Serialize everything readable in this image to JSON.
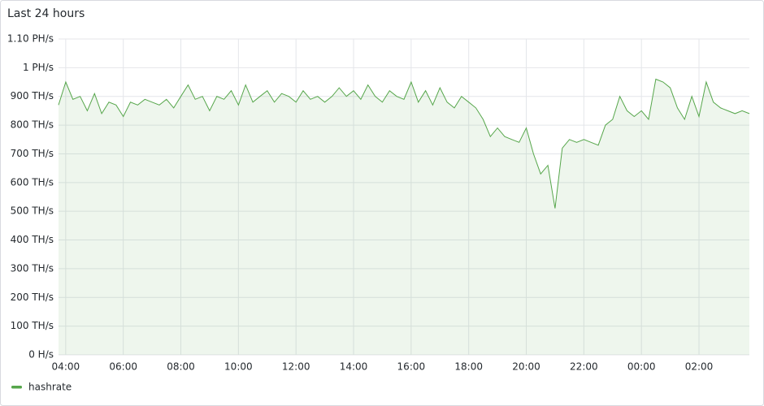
{
  "chart_data": {
    "type": "line",
    "title": "Last 24 hours",
    "x": [
      "03:45",
      "04:00",
      "04:15",
      "04:30",
      "04:45",
      "05:00",
      "05:15",
      "05:30",
      "05:45",
      "06:00",
      "06:15",
      "06:30",
      "06:45",
      "07:00",
      "07:15",
      "07:30",
      "07:45",
      "08:00",
      "08:15",
      "08:30",
      "08:45",
      "09:00",
      "09:15",
      "09:30",
      "09:45",
      "10:00",
      "10:15",
      "10:30",
      "10:45",
      "11:00",
      "11:15",
      "11:30",
      "11:45",
      "12:00",
      "12:15",
      "12:30",
      "12:45",
      "13:00",
      "13:15",
      "13:30",
      "13:45",
      "14:00",
      "14:15",
      "14:30",
      "14:45",
      "15:00",
      "15:15",
      "15:30",
      "15:45",
      "16:00",
      "16:15",
      "16:30",
      "16:45",
      "17:00",
      "17:15",
      "17:30",
      "17:45",
      "18:00",
      "18:15",
      "18:30",
      "18:45",
      "19:00",
      "19:15",
      "19:30",
      "19:45",
      "20:00",
      "20:15",
      "20:30",
      "20:45",
      "21:00",
      "21:15",
      "21:30",
      "21:45",
      "22:00",
      "22:15",
      "22:30",
      "22:45",
      "23:00",
      "23:15",
      "23:30",
      "23:45",
      "00:00",
      "00:15",
      "00:30",
      "00:45",
      "01:00",
      "01:15",
      "01:30",
      "01:45",
      "02:00",
      "02:15",
      "02:30",
      "02:45",
      "03:00",
      "03:15",
      "03:30",
      "03:45"
    ],
    "series": [
      {
        "name": "hashrate",
        "color": "#56a64b",
        "values": [
          870,
          950,
          890,
          900,
          850,
          910,
          840,
          880,
          870,
          830,
          880,
          870,
          890,
          880,
          870,
          890,
          860,
          900,
          940,
          890,
          900,
          850,
          900,
          890,
          920,
          870,
          940,
          880,
          900,
          920,
          880,
          910,
          900,
          880,
          920,
          890,
          900,
          880,
          900,
          930,
          900,
          920,
          890,
          940,
          900,
          880,
          920,
          900,
          890,
          950,
          880,
          920,
          870,
          930,
          880,
          860,
          900,
          880,
          860,
          820,
          760,
          790,
          760,
          750,
          740,
          790,
          700,
          630,
          660,
          510,
          720,
          750,
          740,
          750,
          740,
          730,
          800,
          820,
          900,
          850,
          830,
          850,
          820,
          960,
          950,
          930,
          860,
          820,
          900,
          830,
          950,
          880,
          860,
          850,
          840,
          850,
          840
        ]
      }
    ],
    "xticks": [
      "04:00",
      "06:00",
      "08:00",
      "10:00",
      "12:00",
      "14:00",
      "16:00",
      "18:00",
      "20:00",
      "22:00",
      "00:00",
      "02:00"
    ],
    "ylim": [
      0,
      1100
    ],
    "yticks": [
      {
        "value": 0,
        "label": "0 H/s"
      },
      {
        "value": 100,
        "label": "100 TH/s"
      },
      {
        "value": 200,
        "label": "200 TH/s"
      },
      {
        "value": 300,
        "label": "300 TH/s"
      },
      {
        "value": 400,
        "label": "400 TH/s"
      },
      {
        "value": 500,
        "label": "500 TH/s"
      },
      {
        "value": 600,
        "label": "600 TH/s"
      },
      {
        "value": 700,
        "label": "700 TH/s"
      },
      {
        "value": 800,
        "label": "800 TH/s"
      },
      {
        "value": 900,
        "label": "900 TH/s"
      },
      {
        "value": 1000,
        "label": "1 PH/s"
      },
      {
        "value": 1100,
        "label": "1.10 PH/s"
      }
    ],
    "grid": true
  }
}
